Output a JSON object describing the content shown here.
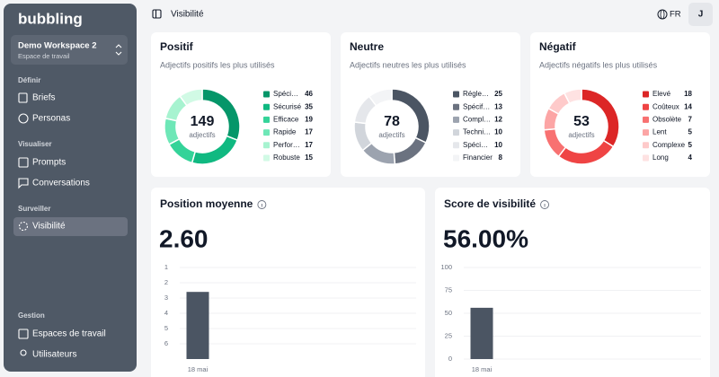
{
  "sidebar": {
    "logo": "bubbling",
    "workspace": {
      "name": "Demo Workspace 2",
      "subtitle": "Espace de travail"
    },
    "sections": [
      {
        "label": "Définir",
        "items": [
          "Briefs",
          "Personas"
        ]
      },
      {
        "label": "Visualiser",
        "items": [
          "Prompts",
          "Conversations"
        ]
      },
      {
        "label": "Surveiller",
        "items": [
          "Visibilité"
        ]
      },
      {
        "label": "Gestion",
        "items": [
          "Espaces de travail",
          "Utilisateurs"
        ]
      }
    ]
  },
  "header": {
    "page_title": "Visibilité",
    "language": "FR",
    "avatar": "J"
  },
  "adjective_cards": [
    {
      "title": "Positif",
      "subtitle": "Adjectifs positifs les plus utilisés",
      "total": 149,
      "total_label": "adjectifs",
      "items": [
        {
          "label": "Spéci…",
          "value": 46,
          "color": "#059669"
        },
        {
          "label": "Sécurisé",
          "value": 35,
          "color": "#10b981"
        },
        {
          "label": "Efficace",
          "value": 19,
          "color": "#34d399"
        },
        {
          "label": "Rapide",
          "value": 17,
          "color": "#6ee7b7"
        },
        {
          "label": "Perfor…",
          "value": 17,
          "color": "#a7f3d0"
        },
        {
          "label": "Robuste",
          "value": 15,
          "color": "#d1fae5"
        }
      ]
    },
    {
      "title": "Neutre",
      "subtitle": "Adjectifs neutres les plus utilisés",
      "total": 78,
      "total_label": "adjectifs",
      "items": [
        {
          "label": "Régle…",
          "value": 25,
          "color": "#4b5563"
        },
        {
          "label": "Spécif…",
          "value": 13,
          "color": "#6b7280"
        },
        {
          "label": "Compl…",
          "value": 12,
          "color": "#9ca3af"
        },
        {
          "label": "Techni…",
          "value": 10,
          "color": "#d1d5db"
        },
        {
          "label": "Spéci…",
          "value": 10,
          "color": "#e5e7eb"
        },
        {
          "label": "Financier",
          "value": 8,
          "color": "#f3f4f6"
        }
      ]
    },
    {
      "title": "Négatif",
      "subtitle": "Adjectifs négatifs les plus utilisés",
      "total": 53,
      "total_label": "adjectifs",
      "items": [
        {
          "label": "Elevé",
          "value": 18,
          "color": "#dc2626"
        },
        {
          "label": "Coûteux",
          "value": 14,
          "color": "#ef4444"
        },
        {
          "label": "Obsolète",
          "value": 7,
          "color": "#f87171"
        },
        {
          "label": "Lent",
          "value": 5,
          "color": "#fca5a5"
        },
        {
          "label": "Complexe",
          "value": 5,
          "color": "#fecaca"
        },
        {
          "label": "Long",
          "value": 4,
          "color": "#fee2e2"
        }
      ]
    }
  ],
  "metric_cards": [
    {
      "title": "Position moyenne",
      "display": "2.60",
      "chart": {
        "type": "bar",
        "categories": [
          "18 mai"
        ],
        "values": [
          2.6
        ],
        "ylim": [
          7,
          1
        ],
        "yticks": [
          1,
          2,
          3,
          4,
          5,
          6
        ],
        "color": "#4b5563",
        "grid": true
      }
    },
    {
      "title": "Score de visibilité",
      "display": "56.00%",
      "chart": {
        "type": "bar",
        "categories": [
          "18 mai"
        ],
        "values": [
          56
        ],
        "ylim": [
          0,
          100
        ],
        "yticks": [
          0,
          25,
          50,
          75,
          100
        ],
        "color": "#4b5563",
        "grid": true
      }
    }
  ]
}
